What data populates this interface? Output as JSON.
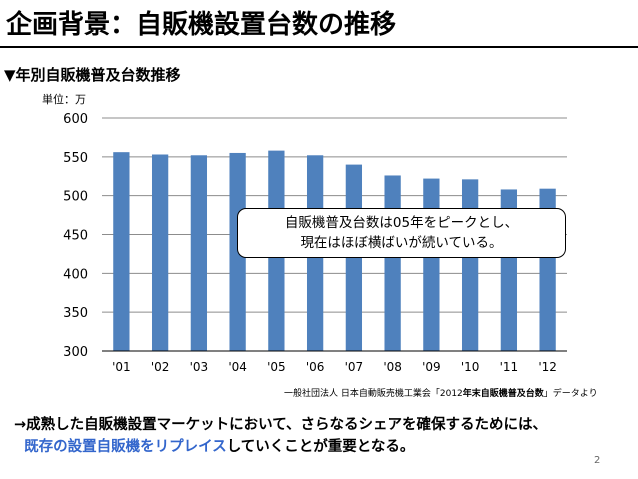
{
  "slide": {
    "title": "企画背景：自販機設置台数の推移",
    "subtitle": "▼年別自販機普及台数推移",
    "page_number": "2",
    "callout_lines": [
      "自販機普及台数は05年をピークとし、",
      "現在はほぼ横ばいが続いている。"
    ],
    "source_prefix": "一般社団法人 日本自動販売機工業会「2012",
    "source_bold": "年末自販機普及台数",
    "source_suffix": "」データより",
    "conclusion_line1": "→成熟した自販機設置マーケットにおいて、さらなるシェアを確保するためには、",
    "conclusion_line2_highlight": "既存の設置自販機をリプレイス",
    "conclusion_line2_rest": "していくことが重要となる。"
  },
  "colors": {
    "bar": "#4f81bd",
    "grid": "#8c8c8c",
    "highlight": "#3366cc"
  },
  "chart_data": {
    "type": "bar",
    "unit_label": "単位：万",
    "categories": [
      "'01",
      "'02",
      "'03",
      "'04",
      "'05",
      "'06",
      "'07",
      "'08",
      "'09",
      "'10",
      "'11",
      "'12"
    ],
    "values": [
      556,
      553,
      552,
      555,
      558,
      552,
      540,
      526,
      522,
      521,
      508,
      509
    ],
    "ylim": [
      300,
      600
    ],
    "yticks": [
      300,
      350,
      400,
      450,
      500,
      550,
      600
    ],
    "grid": true,
    "legend": "none",
    "xlabel": "",
    "ylabel": ""
  }
}
